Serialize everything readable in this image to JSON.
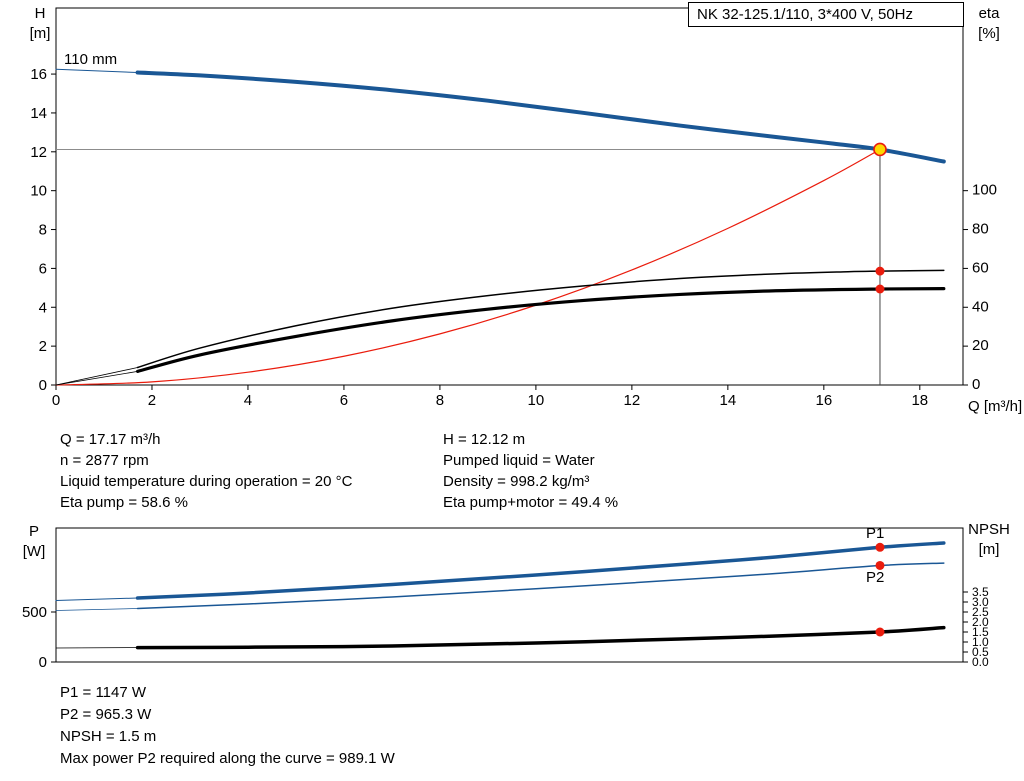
{
  "header": {
    "title": "NK 32-125.1/110, 3*400 V, 50Hz"
  },
  "colors": {
    "blue": "#1a5795",
    "red": "#ea1c0d",
    "black": "#000000",
    "gray": "#8c8c8c",
    "marker_fill": "#ffd800"
  },
  "labels": {
    "impeller": "110 mm",
    "h_axis": "H",
    "h_unit": "[m]",
    "eta_axis": "eta",
    "eta_unit": "[%]",
    "q_axis": "Q [m³/h]",
    "p_axis": "P",
    "p_unit": "[W]",
    "npsh_axis": "NPSH",
    "npsh_unit": "[m]"
  },
  "info_left": [
    "Q = 17.17 m³/h",
    "n = 2877 rpm",
    "Liquid temperature during operation = 20 °C",
    "Eta pump = 58.6 %"
  ],
  "info_right": [
    "H = 12.12 m",
    "Pumped liquid = Water",
    "Density = 998.2 kg/m³",
    "Eta pump+motor = 49.4 %"
  ],
  "info_bottom": [
    "P1 = 1147 W",
    "P2 = 965.3 W",
    "NPSH = 1.5 m",
    "Max power P2 required along the curve = 989.1 W"
  ],
  "chart_data": [
    {
      "type": "line",
      "title": "NK 32-125.1/110, 3*400 V, 50Hz",
      "xlabel": "Q [m³/h]",
      "ylabel": "H [m]",
      "ylabel_right": "eta [%]",
      "xlim": [
        0,
        18.9
      ],
      "ylim": [
        0,
        19.4
      ],
      "ylim_right": [
        0,
        194
      ],
      "x_ticks": [
        0,
        2,
        4,
        6,
        8,
        10,
        12,
        14,
        16,
        18
      ],
      "left_ticks": [
        0,
        2,
        4,
        6,
        8,
        10,
        12,
        14,
        16
      ],
      "right_ticks": [
        0,
        20,
        40,
        60,
        80,
        100
      ],
      "right_tick_decimals": 0,
      "right_tick_font": 15,
      "duty": {
        "q": 17.17,
        "h": 12.12
      },
      "series": [
        {
          "name": "system-curve",
          "axis": "left",
          "color": "red",
          "width": 1.2,
          "points": [
            [
              0,
              0
            ],
            [
              2,
              0.16
            ],
            [
              4,
              0.66
            ],
            [
              6,
              1.48
            ],
            [
              8,
              2.63
            ],
            [
              10,
              4.11
            ],
            [
              12,
              5.92
            ],
            [
              14,
              8.06
            ],
            [
              16,
              10.52
            ],
            [
              17.17,
              12.12
            ]
          ]
        },
        {
          "name": "pump-curve-leadin",
          "axis": "left",
          "color": "blue",
          "width": 1,
          "points": [
            [
              0,
              16.25
            ],
            [
              1.7,
              16.08
            ]
          ]
        },
        {
          "name": "pump-curve",
          "axis": "left",
          "color": "blue",
          "width": 4,
          "points": [
            [
              1.7,
              16.08
            ],
            [
              3,
              15.93
            ],
            [
              5,
              15.6
            ],
            [
              7,
              15.17
            ],
            [
              9,
              14.63
            ],
            [
              11,
              14.0
            ],
            [
              13,
              13.35
            ],
            [
              15,
              12.76
            ],
            [
              16.2,
              12.42
            ],
            [
              17.17,
              12.12
            ],
            [
              18.5,
              11.5
            ]
          ]
        },
        {
          "name": "eta-pump-leadin",
          "axis": "right",
          "color": "black",
          "width": 0.8,
          "points": [
            [
              0,
              0
            ],
            [
              1.7,
              9
            ]
          ]
        },
        {
          "name": "eta-pump-curve",
          "axis": "right",
          "color": "black",
          "width": 1.5,
          "points": [
            [
              1.7,
              9
            ],
            [
              3,
              19
            ],
            [
              5,
              30.5
            ],
            [
              7,
              39.5
            ],
            [
              9,
              46
            ],
            [
              11,
              51
            ],
            [
              13,
              54.8
            ],
            [
              15,
              57.2
            ],
            [
              16.5,
              58.3
            ],
            [
              17.17,
              58.6
            ],
            [
              18.5,
              59
            ]
          ]
        },
        {
          "name": "eta-pump-motor-leadin",
          "axis": "right",
          "color": "black",
          "width": 0.8,
          "points": [
            [
              0,
              0
            ],
            [
              1.7,
              7
            ]
          ]
        },
        {
          "name": "eta-pump-motor-curve",
          "axis": "right",
          "color": "black",
          "width": 3.2,
          "points": [
            [
              1.7,
              7
            ],
            [
              3,
              15.5
            ],
            [
              5,
              25
            ],
            [
              7,
              33
            ],
            [
              9,
              39
            ],
            [
              11,
              43.5
            ],
            [
              13,
              46.6
            ],
            [
              15,
              48.5
            ],
            [
              17.17,
              49.4
            ],
            [
              18.5,
              49.6
            ]
          ]
        }
      ],
      "dots": [
        {
          "name": "eta-pump-dot",
          "q": 17.17,
          "v": 58.6,
          "axis": "right"
        },
        {
          "name": "eta-pump-motor-dot",
          "q": 17.17,
          "v": 49.4,
          "axis": "right"
        }
      ]
    },
    {
      "type": "line",
      "title": "",
      "xlabel": "",
      "ylabel": "P [W]",
      "ylabel_right": "NPSH [m]",
      "xlim": [
        0,
        18.9
      ],
      "ylim": [
        0,
        1340
      ],
      "ylim_right": [
        0,
        6.7
      ],
      "left_ticks": [
        0,
        500
      ],
      "right_ticks": [
        0,
        0.5,
        1,
        1.5,
        2,
        2.5,
        3,
        3.5
      ],
      "right_tick_decimals": 1,
      "right_tick_font": 12,
      "series": [
        {
          "name": "p1-curve-leadin",
          "axis": "left",
          "color": "blue",
          "width": 1,
          "points": [
            [
              0,
              615
            ],
            [
              1.7,
              640
            ]
          ]
        },
        {
          "name": "p1-curve",
          "axis": "left",
          "color": "blue",
          "width": 3.5,
          "points": [
            [
              1.7,
              640
            ],
            [
              4,
              690
            ],
            [
              7,
              775
            ],
            [
              10,
              870
            ],
            [
              13,
              975
            ],
            [
              15,
              1050
            ],
            [
              17.17,
              1147
            ],
            [
              18.5,
              1190
            ]
          ]
        },
        {
          "name": "p2-curve-leadin",
          "axis": "left",
          "color": "blue",
          "width": 0.8,
          "points": [
            [
              0,
              515
            ],
            [
              1.7,
              535
            ]
          ]
        },
        {
          "name": "p2-curve",
          "axis": "left",
          "color": "blue",
          "width": 1.5,
          "points": [
            [
              1.7,
              535
            ],
            [
              4,
              580
            ],
            [
              7,
              650
            ],
            [
              10,
              732
            ],
            [
              13,
              822
            ],
            [
              15,
              885
            ],
            [
              17.17,
              965
            ],
            [
              18.5,
              989
            ]
          ]
        },
        {
          "name": "npsh-curve-leadin",
          "axis": "right",
          "color": "black",
          "width": 0.8,
          "points": [
            [
              0,
              0.7
            ],
            [
              1.7,
              0.72
            ]
          ]
        },
        {
          "name": "npsh-curve",
          "axis": "right",
          "color": "black",
          "width": 3.5,
          "points": [
            [
              1.7,
              0.72
            ],
            [
              4,
              0.74
            ],
            [
              7,
              0.8
            ],
            [
              10,
              0.95
            ],
            [
              13,
              1.15
            ],
            [
              15,
              1.3
            ],
            [
              17.17,
              1.5
            ],
            [
              18.5,
              1.72
            ]
          ]
        }
      ],
      "dots": [
        {
          "name": "p1-dot",
          "q": 17.17,
          "v": 1147,
          "axis": "left"
        },
        {
          "name": "p2-dot",
          "q": 17.17,
          "v": 965.3,
          "axis": "left"
        },
        {
          "name": "npsh-dot",
          "q": 17.17,
          "v": 1.5,
          "axis": "right"
        }
      ],
      "curve_labels": [
        {
          "name": "p1-curve-label",
          "text": "P1"
        },
        {
          "name": "p2-curve-label",
          "text": "P2"
        }
      ]
    }
  ]
}
